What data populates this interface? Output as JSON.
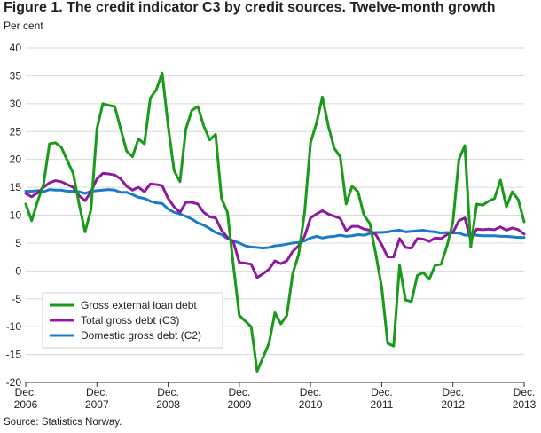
{
  "title": "Figure 1. The credit indicator C3 by credit sources. Twelve-month growth",
  "ylabel": "Per cent",
  "source": "Source: Statistics Norway.",
  "chart_data": {
    "type": "line",
    "ylim": [
      -20,
      40
    ],
    "yticks": [
      -20,
      -15,
      -10,
      -5,
      0,
      5,
      10,
      15,
      20,
      25,
      30,
      35,
      40
    ],
    "grid": "horizontal",
    "legend_position": "bottom-left",
    "x_start": "2006-12",
    "x_end": "2013-12",
    "xticks": [
      {
        "month": "2006-12",
        "line1": "Dec.",
        "line2": "2006"
      },
      {
        "month": "2007-12",
        "line1": "Dec.",
        "line2": "2007"
      },
      {
        "month": "2008-12",
        "line1": "Dec.",
        "line2": "2008"
      },
      {
        "month": "2009-12",
        "line1": "Dec.",
        "line2": "2009"
      },
      {
        "month": "2010-12",
        "line1": "Dec.",
        "line2": "2010"
      },
      {
        "month": "2011-12",
        "line1": "Dec.",
        "line2": "2011"
      },
      {
        "month": "2012-12",
        "line1": "Dec.",
        "line2": "2012"
      },
      {
        "month": "2013-12",
        "line1": "Dec.",
        "line2": "2013"
      }
    ],
    "series": [
      {
        "name": "Gross external loan debt",
        "color": "#1a9a1a",
        "values": [
          12,
          9,
          12.5,
          15.5,
          22.8,
          23,
          22.2,
          19.8,
          17.5,
          12,
          7,
          11,
          25.5,
          30,
          29.7,
          29.5,
          25.5,
          21.5,
          20.5,
          23.7,
          22.8,
          31,
          32.5,
          35.5,
          26,
          18,
          16,
          25.5,
          28.8,
          29.5,
          26,
          23.5,
          24.5,
          13,
          10.5,
          1,
          -8,
          -9,
          -10,
          -18,
          -15.5,
          -13,
          -7.5,
          -9.5,
          -8,
          -0.5,
          3,
          10.5,
          23,
          26.5,
          31.2,
          26,
          22,
          20.5,
          12,
          15.2,
          14.2,
          10,
          8.5,
          3,
          -3,
          -13,
          -13.5,
          1,
          -5.2,
          -5.5,
          -0.8,
          -0.3,
          -1.5,
          1,
          1.2,
          4.5,
          8.8,
          20,
          22.5,
          4.3,
          12,
          11.8,
          12.5,
          13,
          16.3,
          11.5,
          14.2,
          12.8,
          8.8
        ]
      },
      {
        "name": "Total gross debt (C3)",
        "color": "#8e1a9e",
        "values": [
          13.9,
          13.3,
          14,
          15,
          15.8,
          16.2,
          16,
          15.5,
          15,
          13.5,
          12.6,
          14.2,
          16.5,
          17.5,
          17.4,
          17.2,
          16.5,
          15.2,
          14.5,
          15,
          14.2,
          15.6,
          15.5,
          15.3,
          13,
          11.5,
          10.5,
          12.3,
          12.3,
          12,
          10.5,
          9.7,
          9.5,
          7.3,
          6,
          5.2,
          1.5,
          1.4,
          1.2,
          -1.2,
          -0.5,
          0.3,
          1.8,
          1.3,
          1.8,
          3.5,
          4.5,
          6.2,
          9.5,
          10.2,
          10.8,
          10.2,
          9.8,
          9.4,
          7.2,
          8,
          8,
          7.5,
          7.3,
          6.5,
          4.7,
          2.5,
          2.5,
          5.8,
          4.2,
          4.1,
          5.8,
          5.7,
          5.3,
          5.9,
          5.8,
          6.5,
          6.9,
          9,
          9.5,
          5.5,
          7.5,
          7.4,
          7.5,
          7.4,
          7.9,
          7.3,
          7.7,
          7.4,
          6.6
        ]
      },
      {
        "name": "Domestic gross debt (C2)",
        "color": "#1a7cc9",
        "values": [
          14.3,
          14.3,
          14.4,
          14.2,
          14.6,
          14.5,
          14.5,
          14.3,
          14.3,
          14.2,
          13.9,
          14.3,
          14.4,
          14.5,
          14.6,
          14.5,
          14.1,
          14.1,
          13.7,
          13.2,
          13,
          12.5,
          12.2,
          12.1,
          11.1,
          10.5,
          10.2,
          9.8,
          9.3,
          8.6,
          8.2,
          7.6,
          6.9,
          6.5,
          5.8,
          5.4,
          5,
          4.5,
          4.3,
          4.2,
          4.1,
          4.2,
          4.5,
          4.6,
          4.8,
          5,
          5.1,
          5.4,
          5.9,
          6.2,
          5.9,
          6.1,
          6.2,
          6.4,
          6.2,
          6.3,
          6.5,
          6.4,
          6.7,
          6.9,
          6.9,
          7,
          7.2,
          7.3,
          7,
          7.1,
          7.2,
          7.3,
          7.1,
          7,
          6.8,
          6.9,
          6.8,
          6.8,
          6.4,
          6.4,
          6.4,
          6.3,
          6.3,
          6.3,
          6.2,
          6.2,
          6.1,
          6,
          6
        ]
      }
    ]
  }
}
